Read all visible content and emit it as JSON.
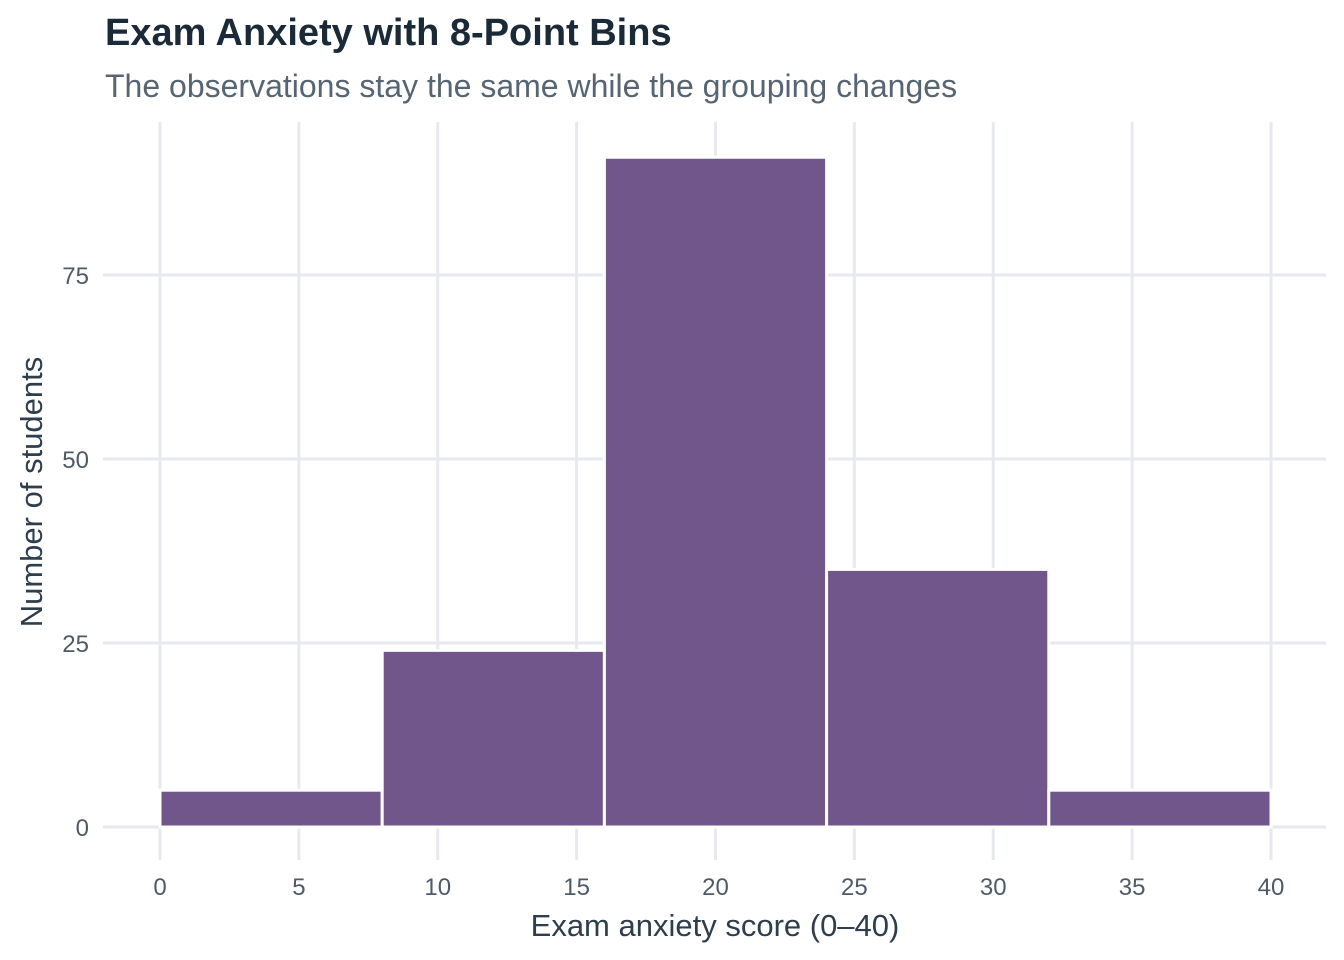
{
  "chart_data": {
    "type": "bar",
    "title": "Exam Anxiety with 8-Point Bins",
    "subtitle": "The observations stay the same while the grouping changes",
    "xlabel": "Exam anxiety score (0–40)",
    "ylabel": "Number of students",
    "bins": [
      {
        "start": 0,
        "end": 8,
        "count": 5
      },
      {
        "start": 8,
        "end": 16,
        "count": 24
      },
      {
        "start": 16,
        "end": 24,
        "count": 91
      },
      {
        "start": 24,
        "end": 32,
        "count": 35
      },
      {
        "start": 32,
        "end": 40,
        "count": 5
      }
    ],
    "xlim": [
      -2,
      42
    ],
    "ylim": [
      -4.5,
      91
    ],
    "xticks": [
      "0",
      "5",
      "10",
      "15",
      "20",
      "25",
      "30",
      "35",
      "40"
    ],
    "yticks": [
      "0",
      "25",
      "50",
      "75"
    ],
    "grid": true,
    "colors": {
      "bar": "#71568c",
      "bar_edge": "#ffffff",
      "grid": "#e6eaef",
      "title": "#1b2a38",
      "subtitle": "#566573",
      "tick": "#4d5b69"
    }
  }
}
